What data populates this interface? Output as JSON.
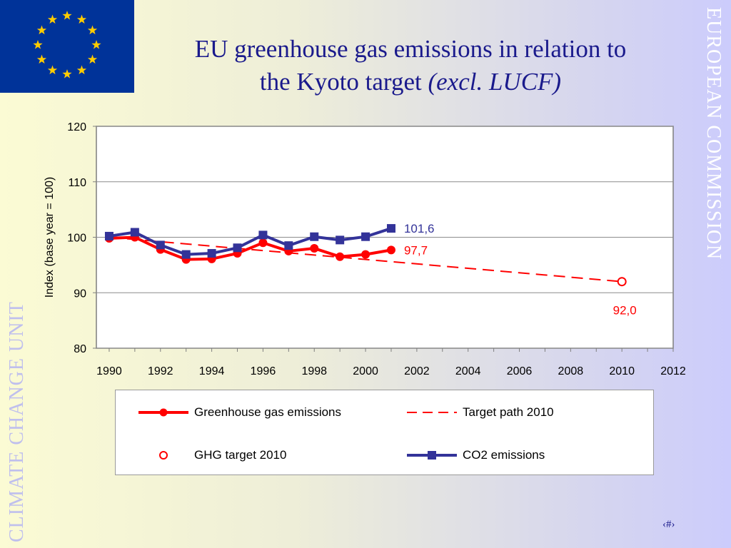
{
  "title": {
    "line1": "EU greenhouse gas emissions in relation to",
    "line2_main": "the Kyoto target ",
    "line2_italic": "(excl. LUCF)"
  },
  "side_right": "EUROPEAN COMMISSION",
  "side_left": "CLIMATE CHANGE UNIT",
  "page_number": "‹#›",
  "flag_icon": "eu-flag-icon",
  "colors": {
    "title": "#1a1a8c",
    "ghg": "#ff0000",
    "co2": "#333399",
    "target": "#ff0000",
    "flag_blue": "#003399",
    "flag_star": "#ffcc00"
  },
  "chart_data": {
    "type": "line",
    "title": "",
    "xlabel": "",
    "ylabel": "Index (base year = 100)",
    "ylim": [
      80,
      120
    ],
    "yticks": [
      80,
      90,
      100,
      110,
      120
    ],
    "xlim": [
      1989.5,
      2012
    ],
    "xticks": [
      1990,
      1992,
      1994,
      1996,
      1998,
      2000,
      2002,
      2004,
      2006,
      2008,
      2010,
      2012
    ],
    "grid": "horizontal",
    "legend_position": "bottom",
    "series": [
      {
        "name": "Greenhouse gas emissions",
        "style": "solid-circle",
        "x": [
          1990,
          1991,
          1992,
          1993,
          1994,
          1995,
          1996,
          1997,
          1998,
          1999,
          2000,
          2001
        ],
        "values": [
          99.8,
          100.0,
          97.8,
          96.0,
          96.1,
          97.1,
          99.0,
          97.5,
          98.0,
          96.5,
          96.9,
          97.7
        ],
        "end_label": "97,7"
      },
      {
        "name": "Target path 2010",
        "style": "dashed",
        "x": [
          1990,
          2010
        ],
        "values": [
          100,
          92.0
        ]
      },
      {
        "name": "GHG target 2010",
        "style": "open-circle",
        "x": [
          2010
        ],
        "values": [
          92.0
        ],
        "point_label": "92,0"
      },
      {
        "name": "CO2 emissions",
        "style": "solid-square",
        "x": [
          1990,
          1991,
          1992,
          1993,
          1994,
          1995,
          1996,
          1997,
          1998,
          1999,
          2000,
          2001
        ],
        "values": [
          100.2,
          100.9,
          98.6,
          96.9,
          97.1,
          98.1,
          100.4,
          98.5,
          100.1,
          99.5,
          100.1,
          101.6
        ],
        "end_label": "101,6"
      }
    ]
  }
}
